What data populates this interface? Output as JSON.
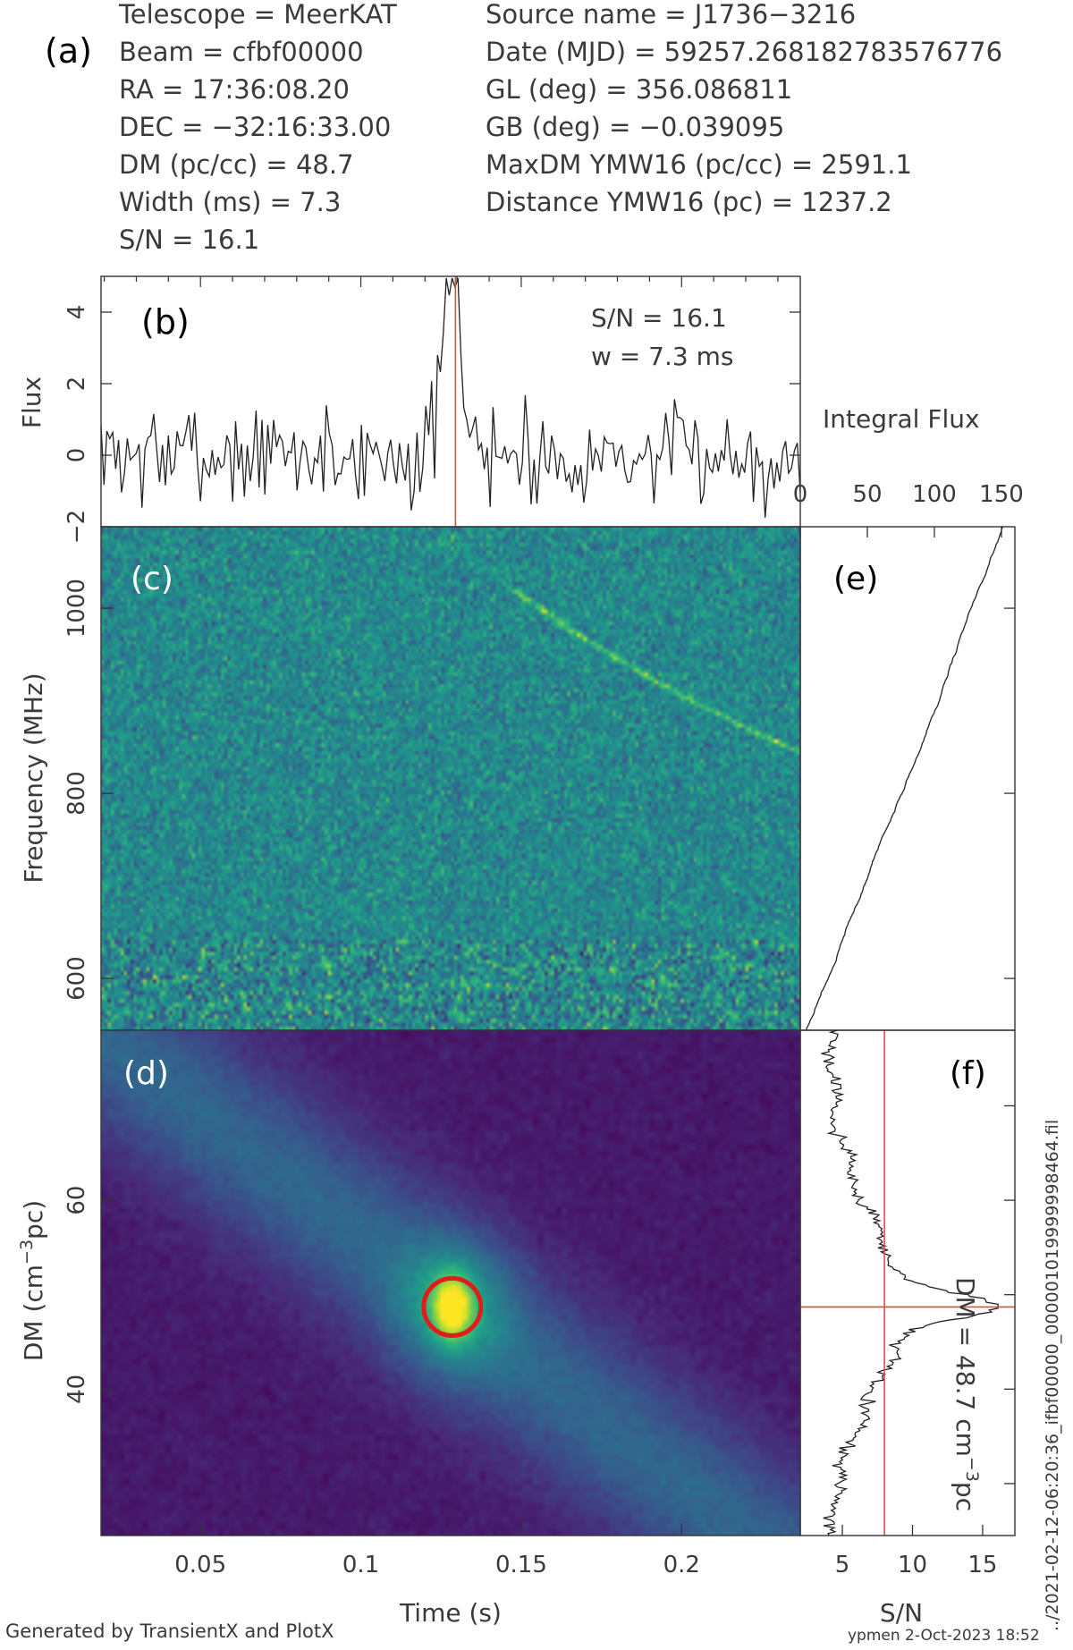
{
  "header": {
    "panel_letter": "(a)",
    "left": [
      "Telescope = MeerKAT",
      "Beam = cfbf00000",
      "RA = 17:36:08.20",
      "DEC = −32:16:33.00",
      "DM (pc/cc) = 48.7",
      "Width (ms) = 7.3",
      "S/N = 16.1"
    ],
    "right": [
      "Source name = J1736−3216",
      "Date (MJD) = 59257.268182783576776",
      "GL (deg) = 356.086811",
      "GB (deg) = −0.039095",
      "MaxDM YMW16  (pc/cc) = 2591.1",
      "Distance YMW16 (pc) = 1237.2"
    ]
  },
  "colors": {
    "axis": "#333333",
    "line": "#222222",
    "marker": "#e8474a",
    "circle": "#e21b1b",
    "panel_label_light": "#ffffff",
    "viridis_dark": "#440154",
    "viridis_mid": "#21918c",
    "viridis_bright": "#fde725"
  },
  "chart_data": [
    {
      "id": "b",
      "type": "line",
      "panel_label": "(b)",
      "ylabel": "Flux",
      "ylim": [
        -2,
        5
      ],
      "xlim": [
        0.019,
        0.237
      ],
      "yticks": [
        "−2",
        "0",
        "2",
        "4"
      ],
      "annotations": [
        "S/N = 16.1",
        "w = 7.3 ms"
      ],
      "marker_x": 0.1295,
      "pulse": {
        "center": 0.1285,
        "peak": 5.0,
        "width_s": 0.003
      },
      "noise_amplitude": 0.95,
      "series": [
        {
          "x_range": [
            0.019,
            0.237
          ],
          "n_points": 240
        }
      ]
    },
    {
      "id": "c",
      "type": "heatmap",
      "panel_label": "(c)",
      "ylabel": "Frequency (MHz)",
      "xlim": [
        0.019,
        0.237
      ],
      "ylim": [
        544,
        1088
      ],
      "yticks": [
        "600",
        "800",
        "1000"
      ],
      "colormap": "viridis",
      "grid": {
        "cols": 216,
        "rows": 128
      }
    },
    {
      "id": "d",
      "type": "heatmap",
      "panel_label": "(d)",
      "ylabel": "DM (cm−3pc)",
      "ylabel_main": "DM (cm",
      "ylabel_sup": "−3",
      "ylabel_end": "pc)",
      "xlabel": "Time (s)",
      "xlim": [
        0.019,
        0.237
      ],
      "ylim": [
        24.5,
        78
      ],
      "xticks": [
        "0.05",
        "0.1",
        "0.15",
        "0.2"
      ],
      "yticks": [
        "40",
        "60"
      ],
      "colormap": "viridis",
      "peak": {
        "time": 0.1285,
        "dm": 48.7
      },
      "grid": {
        "cols": 120,
        "rows": 80
      }
    },
    {
      "id": "e",
      "type": "line",
      "panel_label": "(e)",
      "xlabel": "Integral Flux",
      "xlim": [
        0,
        160
      ],
      "xticks": [
        "0",
        "50",
        "100",
        "150"
      ],
      "ylim": [
        544,
        1088
      ]
    },
    {
      "id": "f",
      "type": "line",
      "panel_label": "(f)",
      "xlabel": "S/N",
      "xlim": [
        2,
        17.3
      ],
      "xticks": [
        "5",
        "10",
        "15"
      ],
      "ylim": [
        24.5,
        78
      ],
      "marker_x": 8.0,
      "marker_y": 48.7,
      "peak": {
        "dm": 48.7,
        "snr": 16.1
      },
      "annotation_main": "DM = 48.7 cm",
      "annotation_sup": "−3",
      "annotation_end": "pc"
    }
  ],
  "footer": {
    "generated": "Generated by TransientX and PlotX",
    "filename": "../2021-02-12-06:20:36_ifbf00000_000001019999998464.fil",
    "user_date": "ypmen  2-Oct-2023 18:52"
  }
}
